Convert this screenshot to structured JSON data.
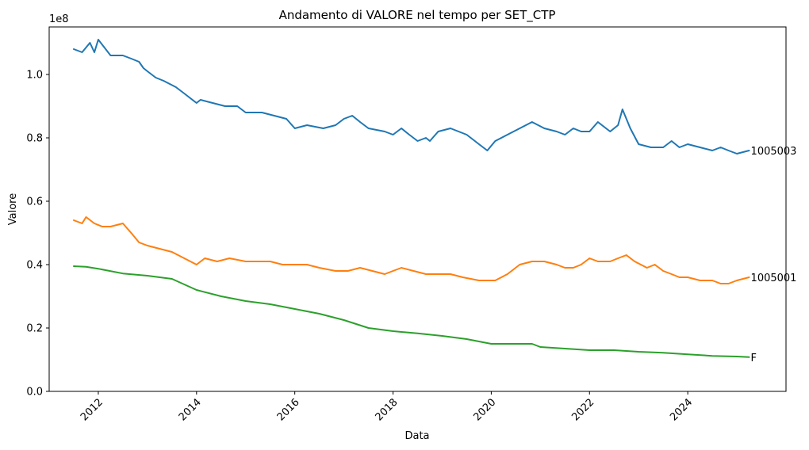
{
  "chart_data": {
    "type": "line",
    "title": "Andamento di VALORE nel tempo per SET_CTP",
    "xlabel": "Data",
    "ylabel": "Valore",
    "y_offset_label": "1e8",
    "xlim": [
      2011.0,
      2026.0
    ],
    "ylim": [
      0,
      1.15
    ],
    "x_ticks": [
      2012,
      2014,
      2016,
      2018,
      2020,
      2022,
      2024
    ],
    "x_tick_labels": [
      "2012",
      "2014",
      "2016",
      "2018",
      "2020",
      "2022",
      "2024"
    ],
    "y_ticks": [
      0.0,
      0.2,
      0.4,
      0.6,
      0.8,
      1.0
    ],
    "y_tick_labels": [
      "0.0",
      "0.2",
      "0.4",
      "0.6",
      "0.8",
      "1.0"
    ],
    "grid": false,
    "series": [
      {
        "name": "1005003",
        "color": "#1f77b4",
        "x": [
          2011.5,
          2011.67,
          2011.83,
          2011.92,
          2012.0,
          2012.25,
          2012.5,
          2012.67,
          2012.83,
          2012.92,
          2013.0,
          2013.17,
          2013.33,
          2013.58,
          2013.75,
          2014.0,
          2014.08,
          2014.33,
          2014.58,
          2014.83,
          2015.0,
          2015.33,
          2015.58,
          2015.83,
          2016.0,
          2016.25,
          2016.58,
          2016.83,
          2017.0,
          2017.17,
          2017.33,
          2017.5,
          2017.83,
          2018.0,
          2018.17,
          2018.33,
          2018.5,
          2018.67,
          2018.75,
          2018.92,
          2019.17,
          2019.5,
          2019.75,
          2019.92,
          2020.08,
          2020.33,
          2020.58,
          2020.83,
          2021.08,
          2021.33,
          2021.5,
          2021.67,
          2021.83,
          2022.0,
          2022.17,
          2022.42,
          2022.58,
          2022.67,
          2022.83,
          2023.0,
          2023.25,
          2023.5,
          2023.67,
          2023.83,
          2024.0,
          2024.25,
          2024.5,
          2024.67,
          2024.83,
          2025.0,
          2025.25
        ],
        "values": [
          1.08,
          1.07,
          1.1,
          1.07,
          1.11,
          1.06,
          1.06,
          1.05,
          1.04,
          1.02,
          1.01,
          0.99,
          0.98,
          0.96,
          0.94,
          0.91,
          0.92,
          0.91,
          0.9,
          0.9,
          0.88,
          0.88,
          0.87,
          0.86,
          0.83,
          0.84,
          0.83,
          0.84,
          0.86,
          0.87,
          0.85,
          0.83,
          0.82,
          0.81,
          0.83,
          0.81,
          0.79,
          0.8,
          0.79,
          0.82,
          0.83,
          0.81,
          0.78,
          0.76,
          0.79,
          0.81,
          0.83,
          0.85,
          0.83,
          0.82,
          0.81,
          0.83,
          0.82,
          0.82,
          0.85,
          0.82,
          0.84,
          0.89,
          0.83,
          0.78,
          0.77,
          0.77,
          0.79,
          0.77,
          0.78,
          0.77,
          0.76,
          0.77,
          0.76,
          0.75,
          0.76
        ]
      },
      {
        "name": "1005001",
        "color": "#ff7f0e",
        "x": [
          2011.5,
          2011.67,
          2011.75,
          2011.92,
          2012.08,
          2012.25,
          2012.5,
          2012.67,
          2012.83,
          2013.0,
          2013.25,
          2013.5,
          2013.75,
          2014.0,
          2014.17,
          2014.42,
          2014.67,
          2015.0,
          2015.25,
          2015.5,
          2015.75,
          2016.0,
          2016.25,
          2016.5,
          2016.83,
          2017.08,
          2017.33,
          2017.58,
          2017.83,
          2018.0,
          2018.17,
          2018.42,
          2018.67,
          2018.92,
          2019.17,
          2019.42,
          2019.75,
          2019.92,
          2020.08,
          2020.33,
          2020.58,
          2020.83,
          2021.08,
          2021.33,
          2021.5,
          2021.67,
          2021.83,
          2022.0,
          2022.17,
          2022.42,
          2022.58,
          2022.75,
          2022.92,
          2023.17,
          2023.33,
          2023.5,
          2023.67,
          2023.83,
          2024.0,
          2024.25,
          2024.5,
          2024.67,
          2024.83,
          2025.0,
          2025.25
        ],
        "values": [
          0.54,
          0.53,
          0.55,
          0.53,
          0.52,
          0.52,
          0.53,
          0.5,
          0.47,
          0.46,
          0.45,
          0.44,
          0.42,
          0.4,
          0.42,
          0.41,
          0.42,
          0.41,
          0.41,
          0.41,
          0.4,
          0.4,
          0.4,
          0.39,
          0.38,
          0.38,
          0.39,
          0.38,
          0.37,
          0.38,
          0.39,
          0.38,
          0.37,
          0.37,
          0.37,
          0.36,
          0.35,
          0.35,
          0.35,
          0.37,
          0.4,
          0.41,
          0.41,
          0.4,
          0.39,
          0.39,
          0.4,
          0.42,
          0.41,
          0.41,
          0.42,
          0.43,
          0.41,
          0.39,
          0.4,
          0.38,
          0.37,
          0.36,
          0.36,
          0.35,
          0.35,
          0.34,
          0.34,
          0.35,
          0.36
        ]
      },
      {
        "name": "F",
        "color": "#2ca02c",
        "x": [
          2011.5,
          2011.75,
          2012.0,
          2012.5,
          2013.0,
          2013.5,
          2014.0,
          2014.5,
          2015.0,
          2015.5,
          2016.0,
          2016.5,
          2017.0,
          2017.5,
          2018.0,
          2018.5,
          2019.0,
          2019.5,
          2020.0,
          2020.5,
          2020.83,
          2021.0,
          2021.5,
          2022.0,
          2022.5,
          2023.0,
          2023.5,
          2024.0,
          2024.5,
          2025.0,
          2025.25
        ],
        "values": [
          0.395,
          0.393,
          0.387,
          0.372,
          0.365,
          0.355,
          0.32,
          0.3,
          0.285,
          0.275,
          0.26,
          0.245,
          0.225,
          0.2,
          0.19,
          0.183,
          0.175,
          0.165,
          0.15,
          0.15,
          0.15,
          0.14,
          0.135,
          0.13,
          0.13,
          0.125,
          0.122,
          0.117,
          0.112,
          0.11,
          0.108
        ]
      }
    ],
    "end_labels": [
      "1005003",
      "1005001",
      "F"
    ]
  }
}
